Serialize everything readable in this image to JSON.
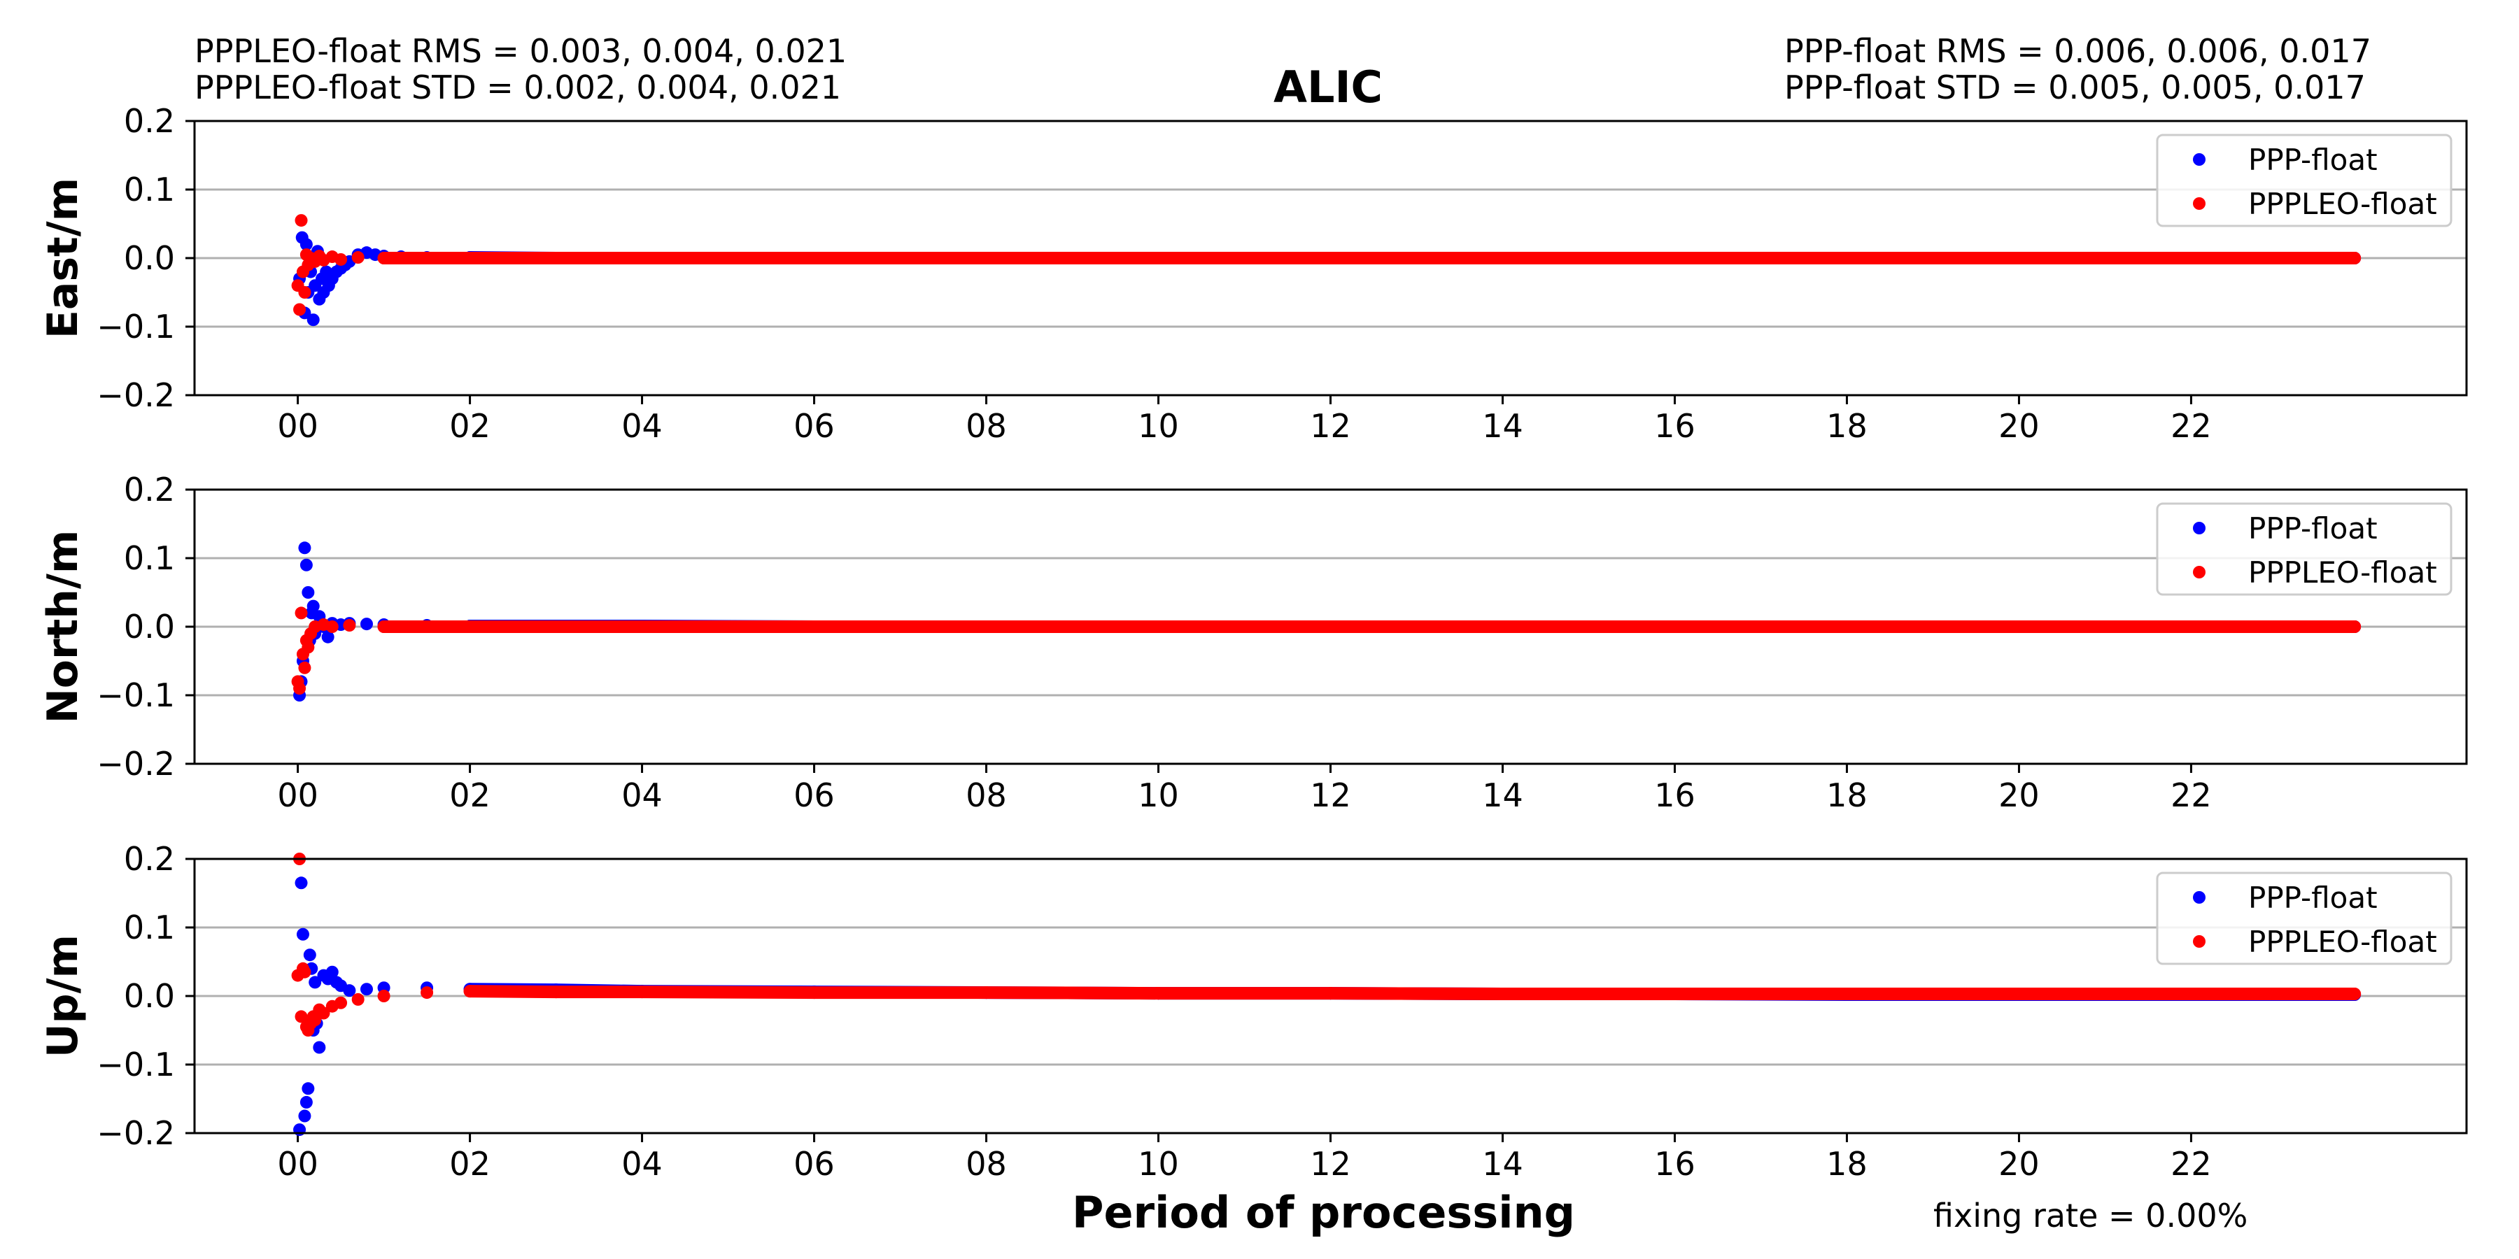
{
  "header": {
    "left_line1": "PPPLEO-float RMS =  0.003, 0.004, 0.021",
    "left_line2": "PPPLEO-float STD =  0.002, 0.004, 0.021",
    "right_line1": "PPP-float RMS =  0.006, 0.006, 0.017",
    "right_line2": "PPP-float STD =  0.005, 0.005, 0.017"
  },
  "footer": {
    "fixing_rate": "fixing rate =   0.00%"
  },
  "colors": {
    "ppp": "#0000ff",
    "pppleo": "#ff0000",
    "grid": "#b0b0b0",
    "axis": "#000000"
  },
  "chart_data": {
    "type": "scatter",
    "title": "ALIC",
    "xlabel": "Period of processing",
    "x_unit": "hours",
    "xlim": [
      -1.2,
      25.2
    ],
    "x_ticks": [
      0,
      2,
      4,
      6,
      8,
      10,
      12,
      14,
      16,
      18,
      20,
      22
    ],
    "x_tick_labels": [
      "00",
      "02",
      "04",
      "06",
      "08",
      "10",
      "12",
      "14",
      "16",
      "18",
      "20",
      "22"
    ],
    "y_ticks": [
      -0.2,
      -0.1,
      0.0,
      0.1,
      0.2
    ],
    "y_tick_labels": [
      "−0.2",
      "−0.1",
      "0.0",
      "0.1",
      "0.2"
    ],
    "grid": "horizontal",
    "legend_position": "top-right",
    "panels": [
      {
        "ylabel": "East/m",
        "ylim": [
          -0.2,
          0.2
        ],
        "series": [
          {
            "name": "PPP-float",
            "color": "#0000ff",
            "points": [
              [
                0.02,
                -0.03
              ],
              [
                0.05,
                0.03
              ],
              [
                0.08,
                -0.08
              ],
              [
                0.1,
                0.02
              ],
              [
                0.12,
                -0.05
              ],
              [
                0.15,
                -0.02
              ],
              [
                0.18,
                -0.09
              ],
              [
                0.2,
                -0.04
              ],
              [
                0.23,
                0.01
              ],
              [
                0.25,
                -0.06
              ],
              [
                0.28,
                -0.03
              ],
              [
                0.3,
                -0.05
              ],
              [
                0.33,
                -0.02
              ],
              [
                0.36,
                -0.04
              ],
              [
                0.4,
                -0.03
              ],
              [
                0.45,
                -0.02
              ],
              [
                0.5,
                -0.015
              ],
              [
                0.55,
                -0.01
              ],
              [
                0.6,
                -0.005
              ],
              [
                0.7,
                0.005
              ],
              [
                0.8,
                0.008
              ],
              [
                0.9,
                0.005
              ],
              [
                1.0,
                0.003
              ],
              [
                1.2,
                0.002
              ],
              [
                1.5,
                0.001
              ],
              [
                2.0,
                0.001
              ],
              [
                3.0,
                0.0
              ],
              [
                4.0,
                0.0
              ],
              [
                6.0,
                0.0
              ],
              [
                8.0,
                0.0
              ],
              [
                10.0,
                0.0
              ],
              [
                12.0,
                0.0
              ],
              [
                14.0,
                0.0
              ],
              [
                16.0,
                0.0
              ],
              [
                18.0,
                0.0
              ],
              [
                20.0,
                0.0
              ],
              [
                22.0,
                0.0
              ],
              [
                23.9,
                0.0
              ]
            ]
          },
          {
            "name": "PPPLEO-float",
            "color": "#ff0000",
            "points": [
              [
                0.0,
                -0.04
              ],
              [
                0.02,
                -0.075
              ],
              [
                0.04,
                0.055
              ],
              [
                0.06,
                -0.02
              ],
              [
                0.08,
                -0.05
              ],
              [
                0.1,
                0.005
              ],
              [
                0.12,
                -0.01
              ],
              [
                0.15,
                0.0
              ],
              [
                0.2,
                -0.005
              ],
              [
                0.25,
                0.003
              ],
              [
                0.3,
                -0.003
              ],
              [
                0.4,
                0.002
              ],
              [
                0.5,
                -0.002
              ],
              [
                0.7,
                0.001
              ],
              [
                1.0,
                0.0
              ],
              [
                2.0,
                0.0
              ],
              [
                4.0,
                0.0
              ],
              [
                6.0,
                0.0
              ],
              [
                8.0,
                0.0
              ],
              [
                10.0,
                0.0
              ],
              [
                12.0,
                0.0
              ],
              [
                14.0,
                0.0
              ],
              [
                16.0,
                0.0
              ],
              [
                18.0,
                0.0
              ],
              [
                20.0,
                0.0
              ],
              [
                22.0,
                0.0
              ],
              [
                23.9,
                0.0
              ]
            ]
          }
        ]
      },
      {
        "ylabel": "North/m",
        "ylim": [
          -0.2,
          0.2
        ],
        "series": [
          {
            "name": "PPP-float",
            "color": "#0000ff",
            "points": [
              [
                0.02,
                -0.1
              ],
              [
                0.04,
                -0.08
              ],
              [
                0.06,
                -0.05
              ],
              [
                0.08,
                0.115
              ],
              [
                0.1,
                0.09
              ],
              [
                0.12,
                0.05
              ],
              [
                0.14,
                -0.02
              ],
              [
                0.16,
                0.02
              ],
              [
                0.18,
                0.03
              ],
              [
                0.2,
                -0.01
              ],
              [
                0.25,
                0.015
              ],
              [
                0.3,
                0.0
              ],
              [
                0.35,
                -0.015
              ],
              [
                0.4,
                0.005
              ],
              [
                0.5,
                0.003
              ],
              [
                0.6,
                0.005
              ],
              [
                0.8,
                0.004
              ],
              [
                1.0,
                0.003
              ],
              [
                1.5,
                0.002
              ],
              [
                2.0,
                0.001
              ],
              [
                4.0,
                0.001
              ],
              [
                6.0,
                0.0
              ],
              [
                8.0,
                0.0
              ],
              [
                10.0,
                0.0
              ],
              [
                12.0,
                0.0
              ],
              [
                14.0,
                0.0
              ],
              [
                16.0,
                0.0
              ],
              [
                18.0,
                0.0
              ],
              [
                20.0,
                0.0
              ],
              [
                22.0,
                0.0
              ],
              [
                23.9,
                0.0
              ]
            ]
          },
          {
            "name": "PPPLEO-float",
            "color": "#ff0000",
            "points": [
              [
                0.0,
                -0.08
              ],
              [
                0.02,
                -0.09
              ],
              [
                0.04,
                0.02
              ],
              [
                0.06,
                -0.04
              ],
              [
                0.08,
                -0.06
              ],
              [
                0.1,
                -0.02
              ],
              [
                0.12,
                -0.03
              ],
              [
                0.15,
                -0.01
              ],
              [
                0.2,
                0.0
              ],
              [
                0.3,
                0.003
              ],
              [
                0.4,
                0.0
              ],
              [
                0.6,
                0.002
              ],
              [
                1.0,
                0.0
              ],
              [
                2.0,
                0.0
              ],
              [
                4.0,
                0.0
              ],
              [
                6.0,
                0.0
              ],
              [
                8.0,
                0.0
              ],
              [
                10.0,
                0.0
              ],
              [
                12.0,
                0.0
              ],
              [
                14.0,
                0.0
              ],
              [
                16.0,
                0.0
              ],
              [
                18.0,
                0.0
              ],
              [
                20.0,
                0.0
              ],
              [
                22.0,
                0.0
              ],
              [
                23.9,
                0.0
              ]
            ]
          }
        ]
      },
      {
        "ylabel": "Up/m",
        "ylim": [
          -0.2,
          0.2
        ],
        "series": [
          {
            "name": "PPP-float",
            "color": "#0000ff",
            "points": [
              [
                0.02,
                -0.195
              ],
              [
                0.04,
                0.165
              ],
              [
                0.06,
                0.09
              ],
              [
                0.08,
                -0.175
              ],
              [
                0.1,
                -0.155
              ],
              [
                0.12,
                -0.135
              ],
              [
                0.14,
                0.06
              ],
              [
                0.16,
                0.04
              ],
              [
                0.18,
                -0.05
              ],
              [
                0.2,
                0.02
              ],
              [
                0.22,
                -0.04
              ],
              [
                0.25,
                -0.075
              ],
              [
                0.3,
                0.03
              ],
              [
                0.35,
                0.025
              ],
              [
                0.4,
                0.035
              ],
              [
                0.45,
                0.02
              ],
              [
                0.5,
                0.015
              ],
              [
                0.6,
                0.008
              ],
              [
                0.8,
                0.01
              ],
              [
                1.0,
                0.012
              ],
              [
                1.5,
                0.012
              ],
              [
                2.0,
                0.01
              ],
              [
                3.0,
                0.009
              ],
              [
                4.0,
                0.007
              ],
              [
                6.0,
                0.006
              ],
              [
                8.0,
                0.005
              ],
              [
                10.0,
                0.004
              ],
              [
                12.0,
                0.004
              ],
              [
                14.0,
                0.003
              ],
              [
                16.0,
                0.003
              ],
              [
                18.0,
                0.002
              ],
              [
                20.0,
                0.002
              ],
              [
                22.0,
                0.002
              ],
              [
                23.9,
                0.002
              ]
            ]
          },
          {
            "name": "PPPLEO-float",
            "color": "#ff0000",
            "points": [
              [
                0.0,
                0.03
              ],
              [
                0.02,
                0.2
              ],
              [
                0.04,
                -0.03
              ],
              [
                0.06,
                0.04
              ],
              [
                0.08,
                0.035
              ],
              [
                0.1,
                -0.045
              ],
              [
                0.12,
                -0.05
              ],
              [
                0.15,
                -0.04
              ],
              [
                0.18,
                -0.03
              ],
              [
                0.2,
                -0.035
              ],
              [
                0.25,
                -0.02
              ],
              [
                0.3,
                -0.025
              ],
              [
                0.4,
                -0.015
              ],
              [
                0.5,
                -0.01
              ],
              [
                0.7,
                -0.005
              ],
              [
                1.0,
                0.0
              ],
              [
                1.5,
                0.005
              ],
              [
                2.0,
                0.007
              ],
              [
                3.0,
                0.006
              ],
              [
                4.0,
                0.006
              ],
              [
                6.0,
                0.005
              ],
              [
                8.0,
                0.005
              ],
              [
                10.0,
                0.004
              ],
              [
                12.0,
                0.004
              ],
              [
                14.0,
                0.003
              ],
              [
                16.0,
                0.003
              ],
              [
                18.0,
                0.003
              ],
              [
                20.0,
                0.003
              ],
              [
                22.0,
                0.003
              ],
              [
                23.9,
                0.003
              ]
            ]
          }
        ]
      }
    ]
  }
}
